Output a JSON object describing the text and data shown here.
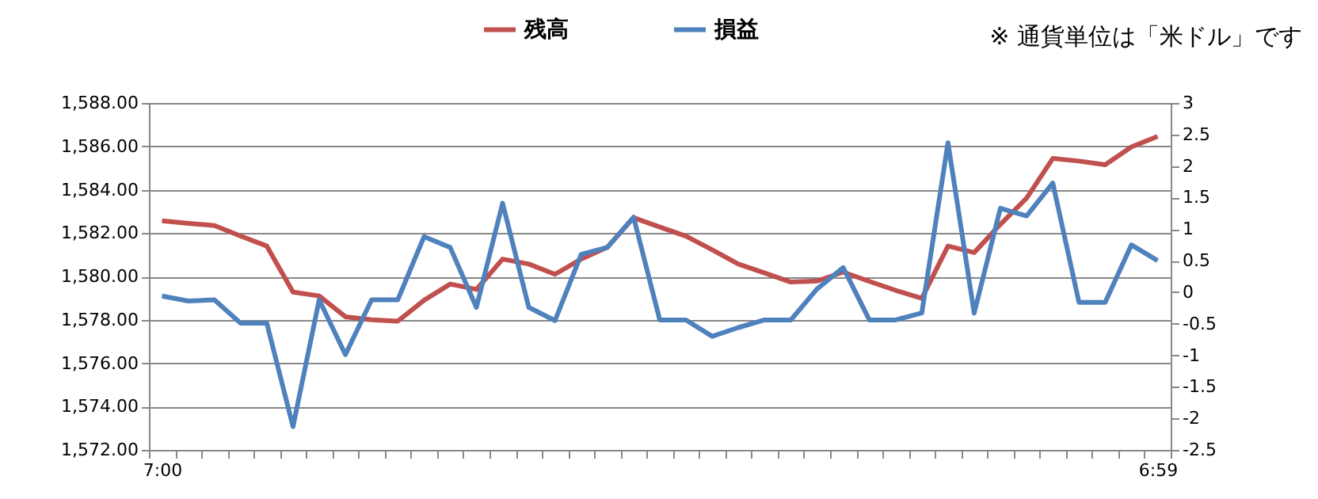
{
  "chart_data": {
    "type": "line",
    "categories": [
      "7:00",
      null,
      null,
      null,
      null,
      null,
      null,
      null,
      null,
      null,
      null,
      null,
      null,
      null,
      null,
      null,
      null,
      null,
      null,
      null,
      null,
      null,
      null,
      null,
      null,
      null,
      null,
      null,
      null,
      null,
      null,
      null,
      null,
      null,
      null,
      null,
      null,
      null,
      "6:59"
    ],
    "series": [
      {
        "name": "残高",
        "color": "#c0504d",
        "values": [
          1582.57,
          1582.45,
          1582.35,
          1581.86,
          1581.4,
          1579.28,
          1579.1,
          1578.14,
          1578.0,
          1577.94,
          1578.9,
          1579.65,
          1579.4,
          1580.8,
          1580.57,
          1580.1,
          1580.8,
          1581.35,
          1582.71,
          1582.28,
          1581.86,
          1581.23,
          1580.57,
          1580.16,
          1579.74,
          1579.79,
          1580.2,
          1579.77,
          1579.36,
          1578.99,
          1581.4,
          1581.1,
          1582.4,
          1583.61,
          1585.44,
          1585.32,
          1585.15,
          1585.97,
          1586.46
        ]
      },
      {
        "name": "損益",
        "color": "#4f81bd",
        "axis": "y2",
        "values": [
          -0.06,
          -0.14,
          -0.12,
          -0.49,
          -0.49,
          -2.13,
          -0.12,
          -0.99,
          -0.12,
          -0.12,
          0.88,
          0.71,
          -0.24,
          1.41,
          -0.24,
          -0.45,
          0.6,
          0.71,
          1.19,
          -0.44,
          -0.44,
          -0.7,
          -0.56,
          -0.44,
          -0.44,
          0.05,
          0.39,
          -0.44,
          -0.44,
          -0.33,
          2.37,
          -0.33,
          1.33,
          1.21,
          1.73,
          -0.16,
          -0.16,
          0.75,
          0.5
        ]
      }
    ],
    "ylim": [
      1572,
      1588
    ],
    "yticks": [
      {
        "value": 1572,
        "label": "1,572.00"
      },
      {
        "value": 1574,
        "label": "1,574.00"
      },
      {
        "value": 1576,
        "label": "1,576.00"
      },
      {
        "value": 1578,
        "label": "1,578.00"
      },
      {
        "value": 1580,
        "label": "1,580.00"
      },
      {
        "value": 1582,
        "label": "1,582.00"
      },
      {
        "value": 1584,
        "label": "1,584.00"
      },
      {
        "value": 1586,
        "label": "1,586.00"
      },
      {
        "value": 1588,
        "label": "1,588.00"
      }
    ],
    "y2lim": [
      -2.5,
      3
    ],
    "y2ticks": [
      -2.5,
      -2,
      -1.5,
      -1,
      -0.5,
      0,
      0.5,
      1,
      1.5,
      2,
      2.5,
      3
    ],
    "grid": "y",
    "legend": "top",
    "annotations": [
      "※ 通貨単位は「米ドル」です"
    ]
  }
}
